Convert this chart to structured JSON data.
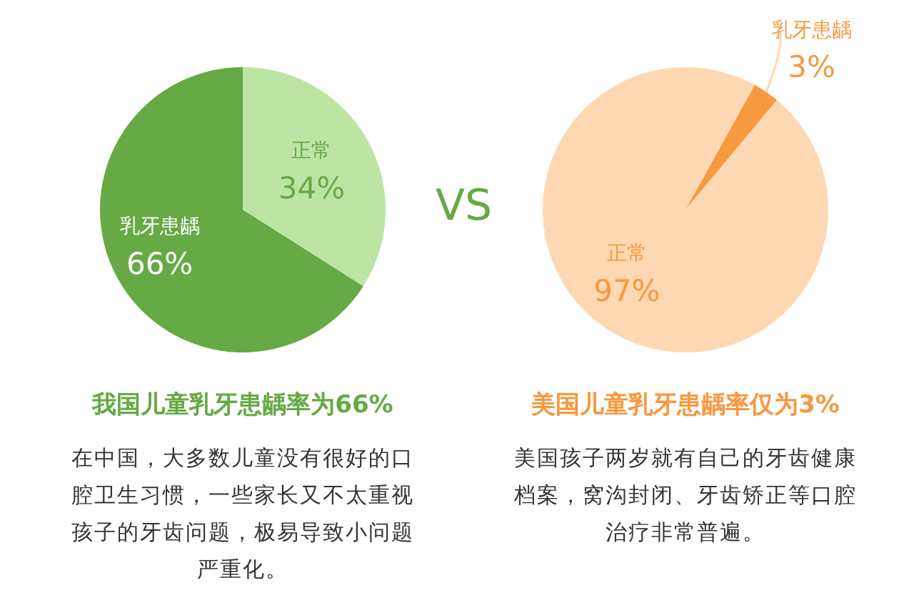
{
  "chart_data": [
    {
      "type": "pie",
      "title": "我国儿童乳牙患龋率为66%",
      "categories": [
        "正常",
        "乳牙患龋"
      ],
      "values": [
        34,
        66
      ],
      "colors": [
        "#bce5a3",
        "#67a944"
      ],
      "value_labels": [
        "34%",
        "66%"
      ],
      "annotations": [
        "在中国，大多数儿童没有很好的口腔卫生习惯，一些家长又不太重视孩子的牙齿问题，极易导致小问题严重化。"
      ]
    },
    {
      "type": "other",
      "title": "VS"
    },
    {
      "type": "pie",
      "title": "美国儿童乳牙患龋率仅为3%",
      "categories": [
        "乳牙患龋",
        "正常"
      ],
      "values": [
        3,
        97
      ],
      "colors": [
        "#f6993f",
        "#fed8b2"
      ],
      "value_labels": [
        "3%",
        "97%"
      ],
      "annotations": [
        "美国孩子两岁就有自己的牙齿健康档案，窝沟封闭、牙齿矫正等口腔治疗非常普遍。"
      ]
    }
  ]
}
